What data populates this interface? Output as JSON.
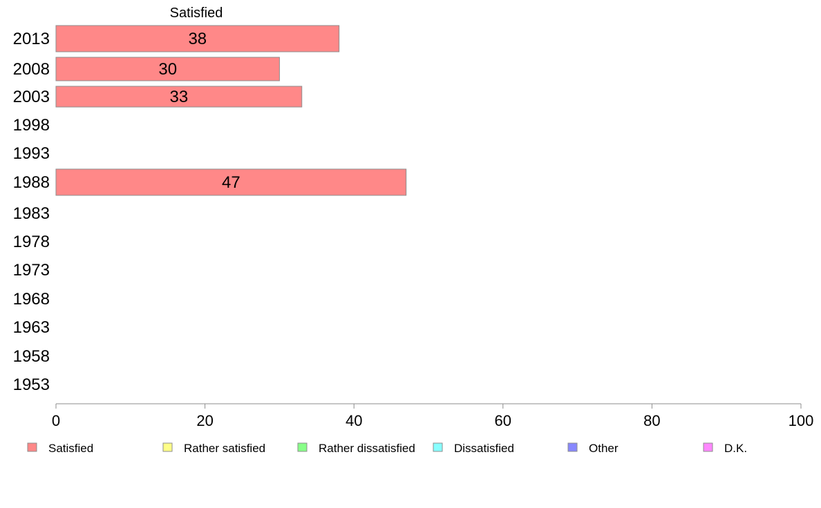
{
  "chart_data": {
    "type": "bar",
    "orientation": "horizontal",
    "stacked": true,
    "series_title": "Satisfied",
    "categories": [
      "2013",
      "2008",
      "2003",
      "1998",
      "1993",
      "1988",
      "1983",
      "1978",
      "1973",
      "1968",
      "1963",
      "1958",
      "1953"
    ],
    "series": [
      {
        "name": "Satisfied",
        "color": "#ff8888",
        "values": [
          38,
          30,
          33,
          null,
          null,
          47,
          null,
          null,
          null,
          null,
          null,
          null,
          null
        ]
      },
      {
        "name": "Rather satisfied",
        "color": "#ffff88",
        "values": [
          null,
          null,
          null,
          null,
          null,
          null,
          null,
          null,
          null,
          null,
          null,
          null,
          null
        ]
      },
      {
        "name": "Rather dissatisfied",
        "color": "#88ff88",
        "values": [
          null,
          null,
          null,
          null,
          null,
          null,
          null,
          null,
          null,
          null,
          null,
          null,
          null
        ]
      },
      {
        "name": "Dissatisfied",
        "color": "#88ffff",
        "values": [
          null,
          null,
          null,
          null,
          null,
          null,
          null,
          null,
          null,
          null,
          null,
          null,
          null
        ]
      },
      {
        "name": "Other",
        "color": "#8888ff",
        "values": [
          null,
          null,
          null,
          null,
          null,
          null,
          null,
          null,
          null,
          null,
          null,
          null,
          null
        ]
      },
      {
        "name": "D.K.",
        "color": "#ff88ff",
        "values": [
          null,
          null,
          null,
          null,
          null,
          null,
          null,
          null,
          null,
          null,
          null,
          null,
          null
        ]
      }
    ],
    "data_labels": [
      "38",
      "30",
      "33",
      "",
      "",
      "47",
      "",
      "",
      "",
      "",
      "",
      "",
      ""
    ],
    "xlim": [
      0,
      100
    ],
    "xticks": [
      0,
      20,
      40,
      60,
      80,
      100
    ],
    "xtick_labels": [
      "0",
      "20",
      "40",
      "60",
      "80",
      "100"
    ],
    "grid": false,
    "legend_position": "bottom"
  }
}
